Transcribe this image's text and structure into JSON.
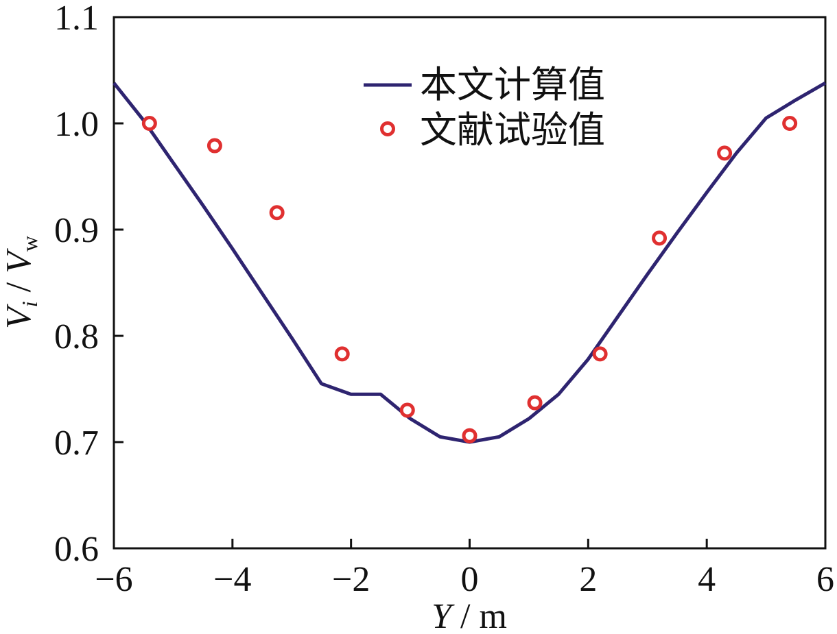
{
  "chart_data": {
    "type": "line",
    "xlabel": {
      "var": "Y",
      "unit": " / m"
    },
    "ylabel": {
      "var": "V",
      "sub1": "i",
      "sep": " / ",
      "var2": "V",
      "sub2": "w"
    },
    "xlim": [
      -6,
      6
    ],
    "ylim": [
      0.6,
      1.1
    ],
    "x_ticks": [
      -6,
      -4,
      -2,
      0,
      2,
      4,
      6
    ],
    "x_tick_labels": [
      "−6",
      "−4",
      "−2",
      "0",
      "2",
      "4",
      "6"
    ],
    "y_ticks": [
      0.6,
      0.7,
      0.8,
      0.9,
      1.0,
      1.1
    ],
    "y_tick_labels": [
      "0.6",
      "0.7",
      "0.8",
      "0.9",
      "1.0",
      "1.1"
    ],
    "grid": false,
    "legend_position": "top-center",
    "series": [
      {
        "name": "本文计算值",
        "kind": "line",
        "color": "#2e2470",
        "x": [
          -6,
          -5.5,
          -5,
          -4.5,
          -4,
          -3.5,
          -3,
          -2.5,
          -2,
          -1.5,
          -1,
          -0.5,
          0,
          0.5,
          1,
          1.5,
          2,
          2.5,
          3,
          3.5,
          4,
          4.5,
          5,
          5.5,
          6
        ],
        "y": [
          1.038,
          1.003,
          0.963,
          0.923,
          0.882,
          0.84,
          0.798,
          0.755,
          0.745,
          0.745,
          0.722,
          0.705,
          0.7,
          0.705,
          0.722,
          0.745,
          0.778,
          0.818,
          0.858,
          0.897,
          0.935,
          0.972,
          1.005,
          1.022,
          1.038
        ]
      },
      {
        "name": "文献试验值",
        "kind": "scatter",
        "color": "#e03030",
        "x": [
          -5.4,
          -4.3,
          -3.25,
          -2.15,
          -1.05,
          0,
          1.1,
          2.2,
          3.2,
          4.3,
          5.4
        ],
        "y": [
          1.0,
          0.979,
          0.916,
          0.783,
          0.73,
          0.706,
          0.737,
          0.783,
          0.892,
          0.972,
          1.0
        ]
      }
    ]
  }
}
